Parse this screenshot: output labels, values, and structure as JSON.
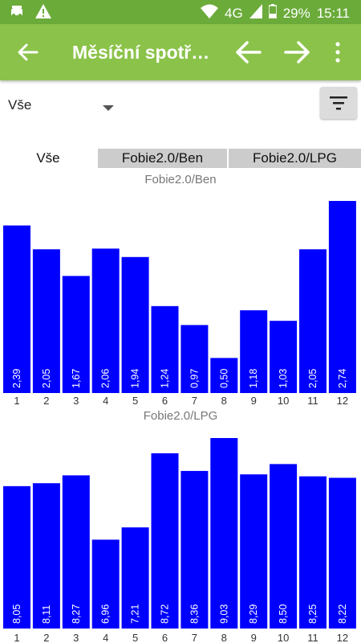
{
  "status": {
    "signal": "4G",
    "battery": "29%",
    "time": "15:11",
    "icons": [
      "taxi-icon",
      "warning-icon",
      "wifi-icon",
      "cell-signal-icon",
      "battery-icon"
    ]
  },
  "appbar": {
    "title": "Měsíční spotř…",
    "icons": [
      "back-arrow-icon",
      "left-arrow-icon",
      "right-arrow-icon",
      "more-vert-icon"
    ]
  },
  "filter": {
    "selected": "Vše",
    "icon": "filter-icon"
  },
  "tabs": [
    "Vše",
    "Fobie2.0/Ben",
    "Fobie2.0/LPG"
  ],
  "colors": {
    "statusbar": "#6bab3a",
    "appbar": "#8bc34a",
    "bar": "#0000ff"
  },
  "chart_data": [
    {
      "type": "bar",
      "title": "Fobie2.0/Ben",
      "categories": [
        "1",
        "2",
        "3",
        "4",
        "5",
        "6",
        "7",
        "8",
        "9",
        "10",
        "11",
        "12"
      ],
      "values": [
        2.39,
        2.05,
        1.67,
        2.06,
        1.94,
        1.24,
        0.97,
        0.5,
        1.18,
        1.03,
        2.05,
        2.74
      ],
      "value_labels": [
        "2,39",
        "2,05",
        "1,67",
        "2,06",
        "1,94",
        "1,24",
        "0,97",
        "0,50",
        "1,18",
        "1,03",
        "2,05",
        "2,74"
      ],
      "ylim": [
        0,
        2.74
      ],
      "grid": false,
      "legend": "none"
    },
    {
      "type": "bar",
      "title": "Fobie2.0/LPG",
      "categories": [
        "1",
        "2",
        "3",
        "4",
        "5",
        "6",
        "7",
        "8",
        "9",
        "10",
        "11",
        "12"
      ],
      "values": [
        8.05,
        8.11,
        8.27,
        6.96,
        7.21,
        8.72,
        8.36,
        9.03,
        8.29,
        8.5,
        8.25,
        8.22
      ],
      "value_labels": [
        "8,05",
        "8,11",
        "8,27",
        "6,96",
        "7,21",
        "8,72",
        "8,36",
        "9,03",
        "8,29",
        "8,50",
        "8,25",
        "8,22"
      ],
      "ylim": [
        5.15,
        9.03
      ],
      "grid": false,
      "legend": "none"
    }
  ]
}
